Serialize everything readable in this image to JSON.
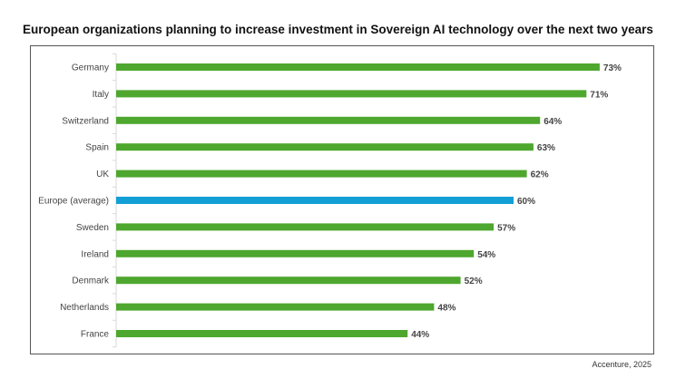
{
  "chart_data": {
    "type": "bar",
    "orientation": "horizontal",
    "title": "European organizations planning to increase investment in Sovereign AI technology over the next two years",
    "categories": [
      "Germany",
      "Italy",
      "Switzerland",
      "Spain",
      "UK",
      "Europe (average)",
      "Sweden",
      "Ireland",
      "Denmark",
      "Netherlands",
      "France"
    ],
    "values": [
      73,
      71,
      64,
      63,
      62,
      60,
      57,
      54,
      52,
      48,
      44
    ],
    "value_labels": [
      "73%",
      "71%",
      "64%",
      "63%",
      "62%",
      "60%",
      "57%",
      "54%",
      "52%",
      "48%",
      "44%"
    ],
    "highlight_index": 5,
    "colors": {
      "default": "#4ea72e",
      "highlight": "#139fd6",
      "label": "#444444"
    },
    "xlabel": "",
    "ylabel": "",
    "xlim": [
      0,
      100
    ],
    "grid": false,
    "legend": "none"
  },
  "source": "Accenture, 2025"
}
